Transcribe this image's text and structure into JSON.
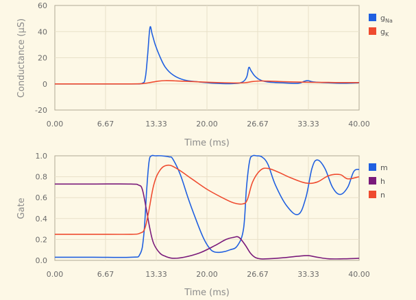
{
  "chart_data": [
    {
      "type": "line",
      "xlabel": "Time (ms)",
      "ylabel": "Conductance (µS)",
      "xlim": [
        0,
        40
      ],
      "ylim": [
        -20,
        60
      ],
      "xticks": [
        "0.00",
        "6.67",
        "13.33",
        "20.00",
        "26.67",
        "33.33",
        "40.00"
      ],
      "yticks": [
        "-20",
        "0",
        "20",
        "40",
        "60"
      ],
      "grid": true,
      "legend": "right",
      "series": [
        {
          "name": "g",
          "subscript": "Na",
          "color": "#1f5fe0",
          "x": [
            0,
            5,
            10,
            11.5,
            11.9,
            12.2,
            12.5,
            12.8,
            13.2,
            13.8,
            14.5,
            15.5,
            17,
            19,
            21,
            23,
            24.5,
            25.2,
            25.5,
            25.8,
            26.3,
            27,
            28,
            30,
            32,
            32.8,
            33.3,
            34,
            36,
            38,
            40
          ],
          "y": [
            0,
            0,
            0,
            0.5,
            5,
            22,
            43,
            38,
            30,
            21,
            13,
            7,
            3,
            1.5,
            0.5,
            0.2,
            1,
            5,
            12.5,
            10,
            6,
            3,
            1.5,
            0.8,
            0.5,
            2,
            2.5,
            1.5,
            0.8,
            0.5,
            0.8
          ]
        },
        {
          "name": "g",
          "subscript": "K",
          "color": "#ef4b2f",
          "x": [
            0,
            5,
            10,
            11.5,
            12.5,
            13.5,
            14.5,
            16,
            18,
            20,
            22,
            24,
            25,
            26,
            27,
            28,
            30,
            32,
            34,
            36,
            38,
            40
          ],
          "y": [
            0,
            0,
            0,
            0.2,
            1,
            2,
            2.5,
            2.3,
            1.8,
            1.3,
            0.9,
            0.7,
            0.9,
            1.8,
            2.2,
            2.1,
            1.7,
            1.4,
            1.2,
            1.1,
            1.0,
            1.0
          ]
        }
      ]
    },
    {
      "type": "line",
      "xlabel": "Time (ms)",
      "ylabel": "Gate",
      "xlim": [
        0,
        40
      ],
      "ylim": [
        0,
        1
      ],
      "xticks": [
        "0.00",
        "6.67",
        "13.33",
        "20.00",
        "26.67",
        "33.33",
        "40.00"
      ],
      "yticks": [
        "0.0",
        "0.2",
        "0.4",
        "0.6",
        "0.8",
        "1.0"
      ],
      "grid": true,
      "legend": "right",
      "series": [
        {
          "name": "m",
          "color": "#1f5fe0",
          "x": [
            0,
            5,
            10,
            11.2,
            11.7,
            12.1,
            12.4,
            12.7,
            13.2,
            14,
            15,
            15.5,
            16.5,
            17.5,
            18.5,
            19.5,
            20.3,
            21,
            22,
            23,
            24,
            24.8,
            25.2,
            25.6,
            26,
            26.5,
            27.2,
            28,
            29,
            30.5,
            32,
            33,
            33.8,
            34.5,
            35.5,
            36.5,
            37.5,
            38.5,
            39.3,
            40
          ],
          "y": [
            0.03,
            0.03,
            0.03,
            0.06,
            0.25,
            0.7,
            0.95,
            1.0,
            1.0,
            1.0,
            0.99,
            0.97,
            0.82,
            0.6,
            0.4,
            0.22,
            0.12,
            0.08,
            0.08,
            0.1,
            0.14,
            0.3,
            0.7,
            0.95,
            1.0,
            1.0,
            0.99,
            0.92,
            0.72,
            0.52,
            0.44,
            0.6,
            0.88,
            0.96,
            0.88,
            0.7,
            0.63,
            0.7,
            0.85,
            0.87
          ]
        },
        {
          "name": "h",
          "color": "#7a1a7a",
          "x": [
            0,
            5,
            10,
            11,
            11.5,
            12,
            12.5,
            13,
            13.8,
            14.5,
            15.5,
            17,
            19,
            21,
            22.5,
            23.5,
            24.2,
            25,
            25.7,
            26.3,
            27,
            28,
            30,
            32,
            33.3,
            34.5,
            36,
            38,
            40
          ],
          "y": [
            0.73,
            0.73,
            0.73,
            0.72,
            0.68,
            0.5,
            0.3,
            0.16,
            0.07,
            0.04,
            0.02,
            0.03,
            0.07,
            0.14,
            0.2,
            0.22,
            0.22,
            0.15,
            0.07,
            0.03,
            0.015,
            0.015,
            0.025,
            0.04,
            0.045,
            0.03,
            0.015,
            0.015,
            0.02
          ]
        },
        {
          "name": "n",
          "color": "#ef4b2f",
          "x": [
            0,
            5,
            10,
            11.2,
            11.8,
            12.3,
            13,
            13.8,
            14.8,
            16,
            18,
            20,
            22,
            23.5,
            24.7,
            25.3,
            26,
            27,
            28,
            29.5,
            31,
            33,
            34.5,
            36,
            37.5,
            38.5,
            40
          ],
          "y": [
            0.25,
            0.25,
            0.25,
            0.26,
            0.3,
            0.45,
            0.72,
            0.86,
            0.91,
            0.88,
            0.78,
            0.68,
            0.6,
            0.55,
            0.54,
            0.58,
            0.75,
            0.86,
            0.88,
            0.84,
            0.79,
            0.74,
            0.75,
            0.81,
            0.82,
            0.78,
            0.8
          ]
        }
      ]
    }
  ]
}
